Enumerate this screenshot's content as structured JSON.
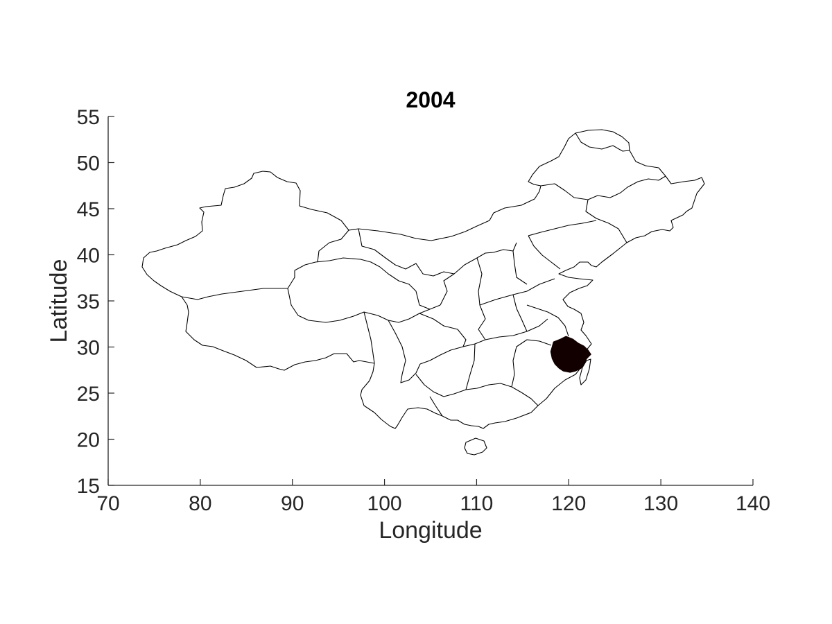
{
  "map": {
    "title": "2004",
    "xlabel": "Longitude",
    "ylabel": "Latitude",
    "xlim": [
      70,
      140
    ],
    "ylim": [
      15,
      55
    ],
    "xticks": [
      "70",
      "80",
      "90",
      "100",
      "110",
      "120",
      "130",
      "140"
    ],
    "yticks": [
      "15",
      "20",
      "25",
      "30",
      "35",
      "40",
      "45",
      "50",
      "55"
    ],
    "highlight_color": "#120000",
    "highlighted_region": {
      "center_lon": 120.0,
      "center_lat": 29.2
    }
  }
}
